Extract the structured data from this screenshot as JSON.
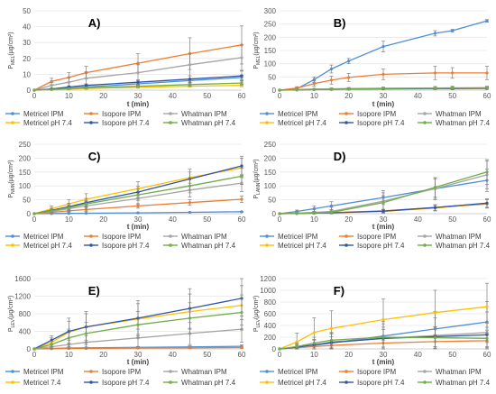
{
  "chart_data": [
    {
      "type": "line",
      "panel_label": "A)",
      "ylabel": "P",
      "ylabel_sub": "MEL",
      "ylabel_unit": "(µg/cm²)",
      "xlabel": "t (min)",
      "x": [
        0,
        5,
        10,
        15,
        30,
        45,
        60
      ],
      "ylim": [
        0,
        50
      ],
      "yticks": [
        0,
        10,
        20,
        30,
        40,
        50
      ],
      "xticks": [
        0,
        10,
        20,
        30,
        40,
        50,
        60
      ],
      "series": [
        {
          "name": "Metricel IPM",
          "color": "#4e8fd6",
          "values": [
            0,
            0.5,
            1.2,
            2.0,
            4.0,
            6.0,
            8.0
          ],
          "errors": [
            0,
            0.3,
            0.5,
            0.7,
            1.0,
            1.2,
            1.5
          ]
        },
        {
          "name": "Isopore IPM",
          "color": "#ed7d31",
          "values": [
            0,
            5.5,
            8.0,
            11.0,
            17.0,
            23.0,
            28.5
          ],
          "errors": [
            0,
            2,
            3,
            4,
            6,
            10,
            12
          ]
        },
        {
          "name": "Whatman IPM",
          "color": "#a5a5a5",
          "values": [
            0,
            3.0,
            5.0,
            7.5,
            11.0,
            16.0,
            20.5
          ],
          "errors": [
            0,
            2,
            3,
            4,
            5,
            7,
            8
          ]
        },
        {
          "name": "Metricel pH 7.4",
          "color": "#ffc000",
          "values": [
            0,
            0.3,
            0.6,
            1.0,
            1.8,
            2.5,
            3.0
          ],
          "errors": [
            0,
            0.2,
            0.3,
            0.4,
            0.5,
            0.6,
            0.8
          ]
        },
        {
          "name": "Isopore pH 7.4",
          "color": "#2f55a4",
          "values": [
            0,
            0.8,
            2.0,
            3.0,
            5.0,
            7.0,
            9.0
          ],
          "errors": [
            0,
            0.5,
            0.8,
            1,
            1.5,
            2,
            3
          ]
        },
        {
          "name": "Whatman pH 7.4",
          "color": "#70ad47",
          "values": [
            0,
            0.4,
            1.0,
            1.5,
            2.5,
            3.5,
            4.5
          ],
          "errors": [
            0,
            0.3,
            0.5,
            0.6,
            0.8,
            1.0,
            1.2
          ]
        }
      ]
    },
    {
      "type": "line",
      "panel_label": "B)",
      "ylabel": "P",
      "ylabel_sub": "MEL",
      "ylabel_unit": "(µg/cm²)",
      "xlabel": "t (min)",
      "x": [
        0,
        5,
        10,
        15,
        20,
        30,
        45,
        50,
        60
      ],
      "ylim": [
        0,
        300
      ],
      "yticks": [
        0,
        50,
        100,
        150,
        200,
        250,
        300
      ],
      "xticks": [
        0,
        10,
        20,
        30,
        40,
        50,
        60
      ],
      "series": [
        {
          "name": "Metricel IPM",
          "color": "#4e8fd6",
          "values": [
            0,
            5,
            40,
            80,
            110,
            165,
            215,
            225,
            262
          ],
          "errors": [
            0,
            5,
            10,
            15,
            10,
            20,
            10,
            5,
            5
          ]
        },
        {
          "name": "Isopore IPM",
          "color": "#ed7d31",
          "values": [
            0,
            8,
            25,
            38,
            48,
            60,
            65,
            65,
            65
          ],
          "errors": [
            0,
            5,
            10,
            15,
            15,
            20,
            25,
            20,
            25
          ]
        },
        {
          "name": "Whatman IPM",
          "color": "#a5a5a5",
          "values": [
            0,
            2,
            4,
            5,
            6,
            7,
            8,
            9,
            9
          ],
          "errors": [
            0,
            2,
            3,
            4,
            4,
            5,
            6,
            6,
            6
          ]
        },
        {
          "name": "Metricel pH 7.4",
          "color": "#ffc000",
          "values": [
            0,
            1,
            2,
            3,
            3,
            4,
            5,
            5,
            6
          ],
          "errors": [
            0,
            1,
            1,
            2,
            2,
            2,
            3,
            3,
            3
          ]
        },
        {
          "name": "Isopore pH 7.4",
          "color": "#2f55a4",
          "values": [
            0,
            1,
            2,
            3,
            4,
            5,
            6,
            6,
            7
          ],
          "errors": [
            0,
            1,
            1,
            2,
            2,
            2,
            3,
            3,
            3
          ]
        },
        {
          "name": "Whatman pH 7.4",
          "color": "#70ad47",
          "values": [
            0,
            1,
            2,
            3,
            4,
            6,
            7,
            8,
            9
          ],
          "errors": [
            0,
            1,
            2,
            2,
            3,
            3,
            4,
            4,
            4
          ]
        }
      ]
    },
    {
      "type": "line",
      "panel_label": "C)",
      "ylabel": "P",
      "ylabel_sub": "NMN",
      "ylabel_unit": "(µg/cm²)",
      "xlabel": "t (min)",
      "x": [
        0,
        5,
        10,
        15,
        30,
        45,
        60
      ],
      "ylim": [
        0,
        250
      ],
      "yticks": [
        0,
        50,
        100,
        150,
        200,
        250
      ],
      "xticks": [
        0,
        10,
        20,
        30,
        40,
        50,
        60
      ],
      "series": [
        {
          "name": "Metricel IPM",
          "color": "#4e8fd6",
          "values": [
            0,
            0.5,
            1,
            1.5,
            3,
            5,
            7
          ],
          "errors": [
            0,
            0.5,
            0.5,
            1,
            1,
            1,
            2
          ]
        },
        {
          "name": "Isopore IPM",
          "color": "#ed7d31",
          "values": [
            0,
            5,
            10,
            15,
            28,
            40,
            52
          ],
          "errors": [
            0,
            3,
            5,
            7,
            8,
            10,
            12
          ]
        },
        {
          "name": "Whatman IPM",
          "color": "#a5a5a5",
          "values": [
            0,
            8,
            18,
            28,
            55,
            85,
            110
          ],
          "errors": [
            0,
            5,
            10,
            15,
            20,
            25,
            30
          ]
        },
        {
          "name": "Metricel pH 7.4",
          "color": "#ffc000",
          "values": [
            0,
            18,
            35,
            52,
            90,
            130,
            165
          ],
          "errors": [
            0,
            10,
            15,
            20,
            25,
            30,
            35
          ]
        },
        {
          "name": "Isopore pH 7.4",
          "color": "#2f55a4",
          "values": [
            0,
            12,
            25,
            40,
            78,
            125,
            172
          ],
          "errors": [
            0,
            8,
            12,
            15,
            20,
            25,
            35
          ]
        },
        {
          "name": "Whatman pH 7.4",
          "color": "#70ad47",
          "values": [
            0,
            10,
            22,
            35,
            68,
            100,
            135
          ],
          "errors": [
            0,
            6,
            10,
            12,
            20,
            25,
            30
          ]
        }
      ]
    },
    {
      "type": "line",
      "panel_label": "D)",
      "ylabel": "P",
      "ylabel_sub": "LANN",
      "ylabel_unit": "(µg/cm²)",
      "xlabel": "t (min)",
      "x": [
        0,
        5,
        10,
        15,
        30,
        45,
        60
      ],
      "ylim": [
        0,
        250
      ],
      "yticks": [
        0,
        50,
        100,
        150,
        200,
        250
      ],
      "xticks": [
        0,
        10,
        20,
        30,
        40,
        50,
        60
      ],
      "series": [
        {
          "name": "Metricel IPM",
          "color": "#4e8fd6",
          "values": [
            0,
            8,
            18,
            28,
            58,
            90,
            120
          ],
          "errors": [
            0,
            5,
            10,
            15,
            25,
            35,
            40
          ]
        },
        {
          "name": "Isopore IPM",
          "color": "#ed7d31",
          "values": [
            0,
            1,
            2,
            4,
            10,
            22,
            35
          ],
          "errors": [
            0,
            2,
            3,
            4,
            6,
            10,
            15
          ]
        },
        {
          "name": "Whatman IPM",
          "color": "#a5a5a5",
          "values": [
            0,
            2,
            5,
            8,
            45,
            90,
            140
          ],
          "errors": [
            0,
            5,
            10,
            15,
            30,
            40,
            50
          ]
        },
        {
          "name": "Metricel pH 7.4",
          "color": "#ffc000",
          "values": [
            0,
            1,
            2,
            3,
            8,
            20,
            38
          ],
          "errors": [
            0,
            2,
            3,
            4,
            6,
            10,
            15
          ]
        },
        {
          "name": "Isopore pH 7.4",
          "color": "#2f55a4",
          "values": [
            0,
            1,
            2,
            3,
            9,
            22,
            38
          ],
          "errors": [
            0,
            2,
            3,
            4,
            6,
            10,
            15
          ]
        },
        {
          "name": "Whatman pH 7.4",
          "color": "#70ad47",
          "values": [
            0,
            1,
            3,
            5,
            40,
            95,
            150
          ],
          "errors": [
            0,
            3,
            5,
            10,
            25,
            35,
            45
          ]
        }
      ]
    },
    {
      "type": "line",
      "panel_label": "E)",
      "ylabel": "P",
      "ylabel_sub": "LEV",
      "ylabel_unit": "(µg/cm²)",
      "xlabel": "t (min)",
      "x": [
        0,
        5,
        10,
        15,
        30,
        45,
        60
      ],
      "ylim": [
        0,
        1600
      ],
      "yticks": [
        0,
        400,
        800,
        1200,
        1600
      ],
      "xticks": [
        0,
        10,
        20,
        30,
        40,
        50,
        60
      ],
      "series": [
        {
          "name": "Metricel IPM",
          "color": "#4e8fd6",
          "values": [
            0,
            10,
            20,
            25,
            35,
            45,
            60
          ],
          "errors": [
            0,
            10,
            15,
            15,
            20,
            25,
            30
          ]
        },
        {
          "name": "Isopore IPM",
          "color": "#ed7d31",
          "values": [
            0,
            5,
            10,
            12,
            20,
            25,
            30
          ],
          "errors": [
            0,
            5,
            8,
            10,
            12,
            15,
            18
          ]
        },
        {
          "name": "Whatman IPM",
          "color": "#a5a5a5",
          "values": [
            0,
            50,
            100,
            150,
            250,
            350,
            450
          ],
          "errors": [
            0,
            50,
            100,
            150,
            200,
            250,
            300
          ]
        },
        {
          "name": "Metricel 7.4",
          "color": "#ffc000",
          "values": [
            0,
            150,
            380,
            500,
            680,
            850,
            990
          ],
          "errors": [
            0,
            100,
            250,
            300,
            350,
            400,
            450
          ]
        },
        {
          "name": "Isopore pH 7.4",
          "color": "#2f55a4",
          "values": [
            0,
            200,
            400,
            500,
            700,
            920,
            1150
          ],
          "errors": [
            0,
            100,
            300,
            350,
            400,
            450,
            480
          ]
        },
        {
          "name": "Whatman pH 7.4",
          "color": "#70ad47",
          "values": [
            0,
            100,
            250,
            350,
            550,
            700,
            830
          ],
          "errors": [
            0,
            80,
            200,
            250,
            300,
            350,
            400
          ]
        }
      ]
    },
    {
      "type": "line",
      "panel_label": "F)",
      "ylabel": "P",
      "ylabel_sub": "LEV",
      "ylabel_unit": "(µg/cm²)",
      "xlabel": "t (min)",
      "x": [
        0,
        5,
        10,
        15,
        30,
        45,
        60
      ],
      "ylim": [
        0,
        1200
      ],
      "yticks": [
        0,
        200,
        400,
        600,
        800,
        1000,
        1200
      ],
      "xticks": [
        0,
        10,
        20,
        30,
        40,
        50,
        60
      ],
      "series": [
        {
          "name": "Metricel IPM",
          "color": "#4e8fd6",
          "values": [
            0,
            30,
            60,
            100,
            220,
            340,
            460
          ],
          "errors": [
            0,
            50,
            100,
            150,
            250,
            300,
            350
          ]
        },
        {
          "name": "Isopore IPM",
          "color": "#ed7d31",
          "values": [
            0,
            20,
            40,
            60,
            100,
            125,
            140
          ],
          "errors": [
            0,
            30,
            50,
            80,
            100,
            110,
            120
          ]
        },
        {
          "name": "Whatman IPM",
          "color": "#a5a5a5",
          "values": [
            0,
            25,
            60,
            120,
            180,
            230,
            280
          ],
          "errors": [
            0,
            50,
            100,
            150,
            250,
            300,
            350
          ]
        },
        {
          "name": "Metricel pH 7.4",
          "color": "#ffc000",
          "values": [
            0,
            120,
            280,
            350,
            500,
            620,
            720
          ],
          "errors": [
            0,
            150,
            250,
            300,
            350,
            380,
            400
          ]
        },
        {
          "name": "Isopore pH 7.4",
          "color": "#2f55a4",
          "values": [
            0,
            30,
            70,
            110,
            180,
            210,
            240
          ],
          "errors": [
            0,
            40,
            80,
            100,
            150,
            170,
            200
          ]
        },
        {
          "name": "Whatman pH 7.4",
          "color": "#70ad47",
          "values": [
            0,
            40,
            100,
            150,
            200,
            190,
            180
          ],
          "errors": [
            0,
            60,
            100,
            130,
            170,
            180,
            190
          ]
        }
      ]
    }
  ]
}
